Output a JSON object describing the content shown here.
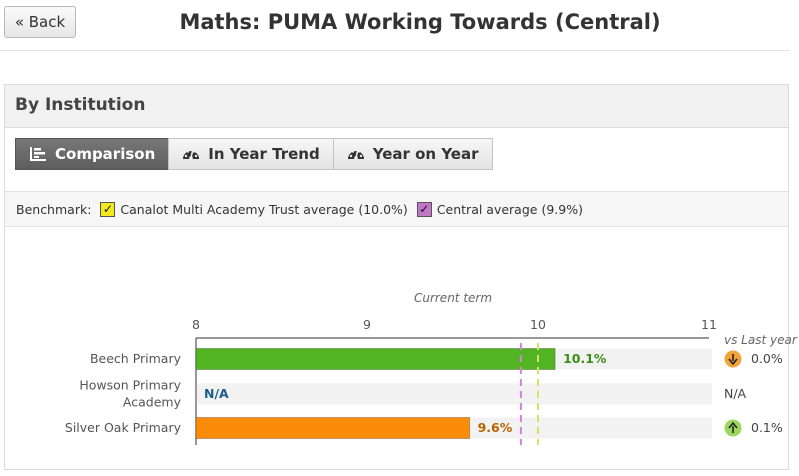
{
  "header": {
    "back_label": "« Back",
    "title": "Maths: PUMA Working Towards (Central)"
  },
  "panel": {
    "title": "By Institution",
    "tabs": [
      {
        "label": "Comparison",
        "icon": "bar-chart-icon",
        "active": true
      },
      {
        "label": "In Year Trend",
        "icon": "gauge-icon",
        "active": false
      },
      {
        "label": "Year on Year",
        "icon": "gauge-icon",
        "active": false
      }
    ]
  },
  "benchmark": {
    "label": "Benchmark:",
    "items": [
      {
        "label": "Canalot Multi Academy Trust average (10.0%)",
        "color": "#f2e81a",
        "checked": true
      },
      {
        "label": "Central average (9.9%)",
        "color": "#c277c6",
        "checked": true
      }
    ]
  },
  "chart_data": {
    "type": "bar",
    "orientation": "horizontal",
    "xlabel": "Current term",
    "xlim": [
      8,
      11
    ],
    "ticks": [
      "8",
      "9",
      "10",
      "11"
    ],
    "categories": [
      "Beech Primary",
      "Howson Primary Academy",
      "Silver Oak Primary"
    ],
    "category_lines": [
      [
        "Beech Primary"
      ],
      [
        "Howson Primary",
        "Academy"
      ],
      [
        "Silver Oak Primary"
      ]
    ],
    "values": [
      10.1,
      null,
      9.6
    ],
    "value_labels": [
      "10.1%",
      "N/A",
      "9.6%"
    ],
    "bar_colors": [
      "#52b423",
      null,
      "#fb8c09"
    ],
    "label_colors": [
      "#3c8d17",
      "#1b5f8a",
      "#b86300"
    ],
    "benchmarks": [
      {
        "value": 10.0,
        "color": "#dede62"
      },
      {
        "value": 9.9,
        "color": "#d183d4"
      }
    ],
    "comparison": {
      "header": "vs Last year",
      "items": [
        {
          "text": "0.0%",
          "direction": "down",
          "icon": "arrow-down-icon",
          "color": "#f2a33a"
        },
        {
          "text": "N/A",
          "direction": null,
          "icon": null,
          "color": null
        },
        {
          "text": "0.1%",
          "direction": "up",
          "icon": "arrow-up-icon",
          "color": "#9bd65e"
        }
      ]
    }
  }
}
